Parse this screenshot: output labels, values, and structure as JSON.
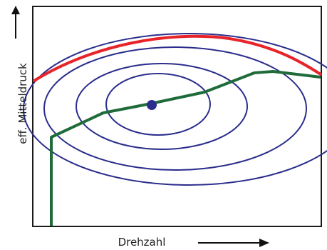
{
  "axes": {
    "x_label": "Drehzahl",
    "y_label": "eff. Mitteldruck"
  },
  "colors": {
    "frame": "#1a1a1a",
    "full_load_curve": "#e8242b",
    "contours": "#2b2d8c",
    "operating_line": "#1f6b3a",
    "optimum_point": "#2b2d8c",
    "arrows": "#111111"
  }
}
